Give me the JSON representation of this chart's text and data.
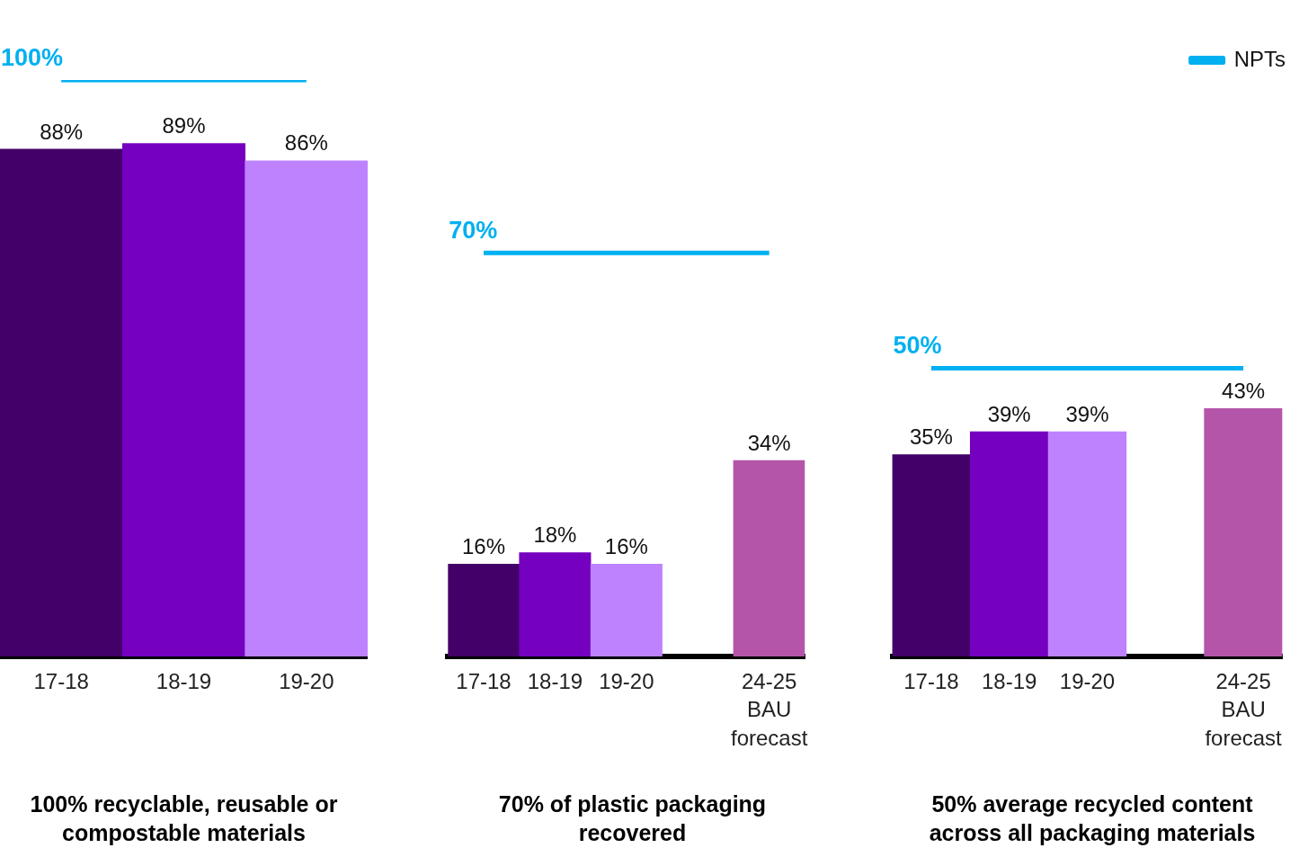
{
  "chart_data": [
    {
      "type": "bar",
      "title": "100% recyclable, reusable or compostable materials",
      "categories": [
        "17-18",
        "18-19",
        "19-20"
      ],
      "tick_labels": "x",
      "grid": false,
      "legend": false,
      "series": [
        {
          "colors": [
            "#430068",
            "#7500c0",
            "#be82ff"
          ],
          "values": [
            88,
            89,
            86
          ],
          "value_labels": [
            "88%",
            "89%",
            "86%"
          ]
        },
        {
          "type": "line",
          "color": "#00b0f0",
          "values": [
            100,
            100,
            100
          ],
          "value_labels": [
            "100%",
            null,
            null
          ]
        }
      ]
    },
    {
      "type": "bar",
      "title": "70% of plastic packaging recovered",
      "categories": [
        "17-18",
        "18-19",
        "19-20",
        null,
        "24-25 BAU forecast"
      ],
      "tick_labels": "x",
      "grid": false,
      "legend": false,
      "series": [
        {
          "colors": [
            "#430068",
            "#7500c0",
            "#be82ff",
            "#ffffff",
            "#b455aa"
          ],
          "values": [
            16,
            18,
            16,
            null,
            34
          ],
          "value_labels": [
            "16%",
            "18%",
            "16%",
            null,
            "34%"
          ]
        },
        {
          "type": "line",
          "color": "#00b0f0",
          "values": [
            70,
            70,
            70,
            70,
            70
          ],
          "value_labels": [
            "70%",
            null,
            null,
            null,
            null
          ]
        }
      ]
    },
    {
      "type": "bar",
      "title": "50% average recycled content across all packaging materials",
      "categories": [
        "17-18",
        "18-19",
        "19-20",
        null,
        "24-25 BAU forecast"
      ],
      "tick_labels": "x",
      "grid": false,
      "legend": "top right",
      "series": [
        {
          "colors": [
            "#430068",
            "#7500c0",
            "#be82ff",
            "#ffffff",
            "#b455aa"
          ],
          "values": [
            35,
            39,
            39,
            null,
            43
          ],
          "value_labels": [
            "35%",
            "39%",
            "39%",
            null,
            "43%"
          ]
        },
        {
          "type": "line",
          "name": "NPTs",
          "color": "#00b0f0",
          "values": [
            50,
            50,
            50,
            50,
            50
          ],
          "value_labels": [
            "50%",
            null,
            null,
            null,
            null
          ]
        }
      ]
    }
  ]
}
